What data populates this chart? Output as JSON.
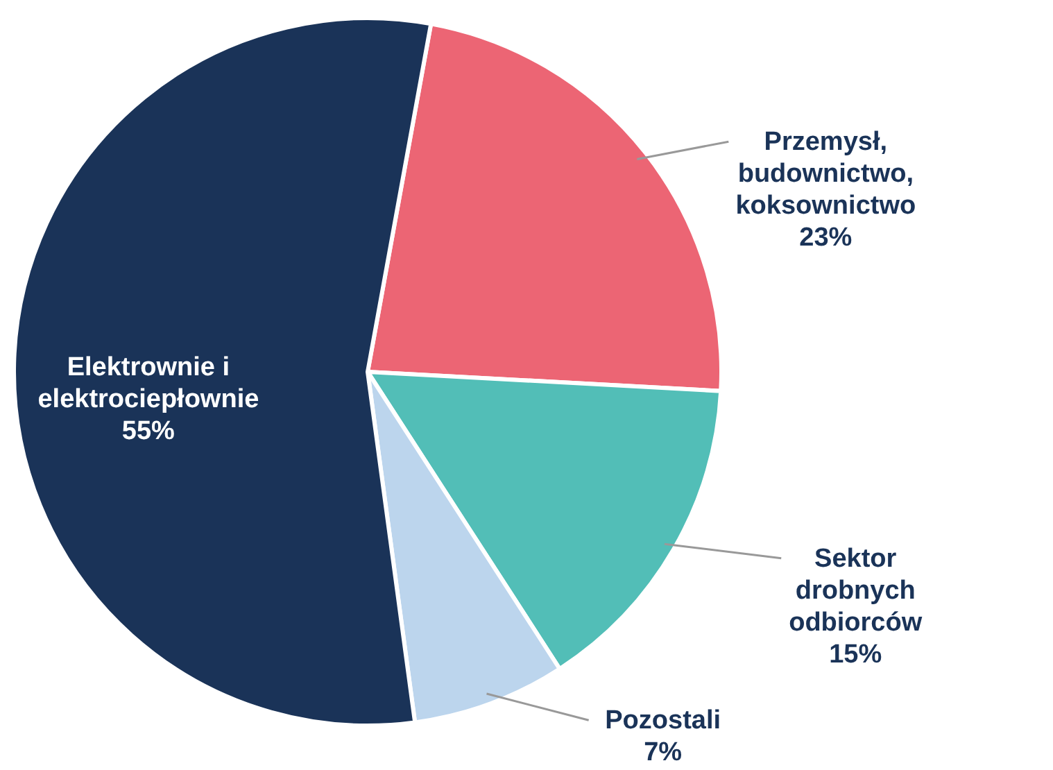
{
  "chart_data": {
    "type": "pie",
    "categories": [
      "Przemysł, budownictwo, koksownictwo",
      "Sektor drobnych odbiorców",
      "Pozostali",
      "Elektrownie i elektrociepłownie"
    ],
    "values": [
      23,
      15,
      7,
      55
    ],
    "colors": [
      "#ec6574",
      "#52beb7",
      "#bcd5ed",
      "#1a3358"
    ],
    "value_labels": [
      "23%",
      "15%",
      "7%",
      "55%"
    ]
  }
}
